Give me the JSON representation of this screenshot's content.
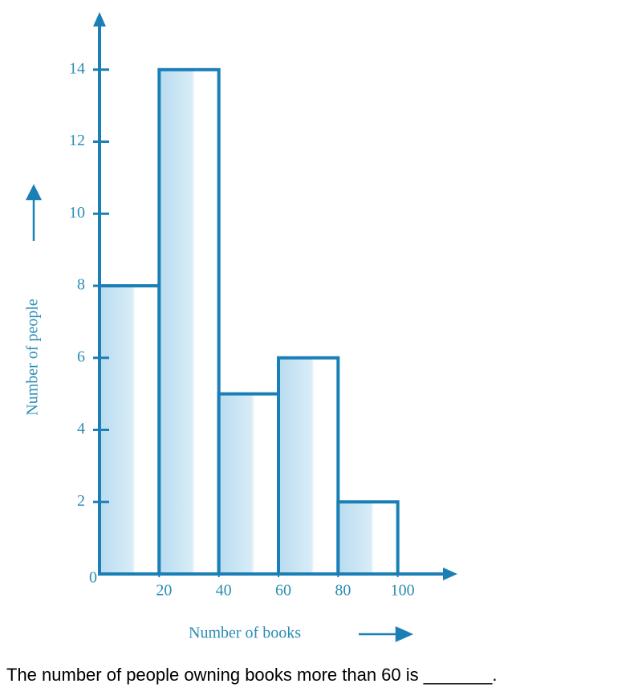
{
  "chart_data": {
    "type": "histogram",
    "bins": [
      0,
      20,
      40,
      60,
      80,
      100
    ],
    "values": [
      8,
      14,
      5,
      6,
      2
    ],
    "color": "#1a7fb6",
    "xlabel": "Number of books",
    "ylabel": "Number of people",
    "xlim": [
      0,
      120
    ],
    "xticks": [
      0,
      20,
      40,
      60,
      80,
      100
    ],
    "ylim": [
      0,
      15.6
    ],
    "yticks": [
      2,
      4,
      6,
      8,
      10,
      12,
      14
    ]
  },
  "question": "The number of people owning books more than 60 is _______."
}
